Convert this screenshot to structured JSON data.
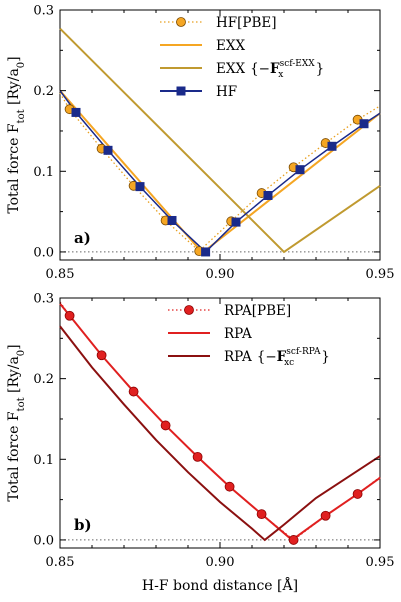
{
  "chart_data": [
    {
      "type": "line",
      "panel_label": "a)",
      "xlim": [
        0.85,
        0.95
      ],
      "ylim": [
        -0.01,
        0.3
      ],
      "x_ticks": [
        0.85,
        0.9,
        0.95
      ],
      "x_tick_labels": [
        "0.85",
        "0.90",
        "0.95"
      ],
      "y_ticks": [
        0.0,
        0.1,
        0.2,
        0.3
      ],
      "y_tick_labels": [
        "0.0",
        "0.1",
        "0.2",
        "0.3"
      ],
      "ylabel": "Total force F",
      "ylabel_sub": "tot",
      "ylabel_unit_pre": "[Ry/a",
      "ylabel_unit_sub": "0",
      "ylabel_unit_post": "]",
      "zero_line": true,
      "legend_position": "top-right",
      "series": [
        {
          "name": "HF[PBE]",
          "style": "dotted-circles",
          "color": "#e8a020",
          "marker_color": "#f5a623",
          "x": [
            0.85,
            0.853,
            0.863,
            0.873,
            0.883,
            0.8935,
            0.9035,
            0.913,
            0.923,
            0.933,
            0.943,
            0.95
          ],
          "y": [
            0.197,
            0.177,
            0.128,
            0.082,
            0.039,
            0.001,
            0.038,
            0.073,
            0.105,
            0.135,
            0.164,
            0.181
          ]
        },
        {
          "name": "EXX",
          "style": "line",
          "color": "#f5a623",
          "x": [
            0.85,
            0.8945,
            0.95
          ],
          "y": [
            0.2,
            -0.001,
            0.172
          ]
        },
        {
          "name": "EXX",
          "name_math": "{−F",
          "name_sub": "x",
          "name_sup": "scf-EXX",
          "name_post": "}",
          "style": "line",
          "color": "#c09a30",
          "x": [
            0.85,
            0.92,
            0.95
          ],
          "y": [
            0.277,
            0.0,
            0.082
          ]
        },
        {
          "name": "HF",
          "style": "line-squares",
          "color": "#1a2a8a",
          "marker_color": "#1a2a8a",
          "x": [
            0.85,
            0.855,
            0.865,
            0.875,
            0.885,
            0.8955,
            0.905,
            0.915,
            0.925,
            0.935,
            0.945,
            0.95
          ],
          "y": [
            0.2,
            0.173,
            0.126,
            0.081,
            0.039,
            0.0,
            0.037,
            0.07,
            0.102,
            0.131,
            0.159,
            0.172
          ]
        }
      ]
    },
    {
      "type": "line",
      "panel_label": "b)",
      "xlim": [
        0.85,
        0.95
      ],
      "ylim": [
        -0.01,
        0.3
      ],
      "x_ticks": [
        0.85,
        0.9,
        0.95
      ],
      "x_tick_labels": [
        "0.85",
        "0.90",
        "0.95"
      ],
      "y_ticks": [
        0.0,
        0.1,
        0.2,
        0.3
      ],
      "y_tick_labels": [
        "0.0",
        "0.1",
        "0.2",
        "0.3"
      ],
      "xlabel": "H-F bond distance [Å]",
      "ylabel": "Total force F",
      "ylabel_sub": "tot",
      "ylabel_unit_pre": "[Ry/a",
      "ylabel_unit_sub": "0",
      "ylabel_unit_post": "]",
      "zero_line": true,
      "legend_position": "top-right",
      "series": [
        {
          "name": "RPA[PBE]",
          "style": "dotted-circles",
          "color": "#e02020",
          "marker_color": "#e02020",
          "x": [
            0.85,
            0.853,
            0.863,
            0.873,
            0.883,
            0.893,
            0.903,
            0.913,
            0.923,
            0.933,
            0.943,
            0.95
          ],
          "y": [
            0.295,
            0.278,
            0.229,
            0.184,
            0.142,
            0.103,
            0.066,
            0.032,
            0.0,
            0.03,
            0.057,
            0.078
          ]
        },
        {
          "name": "RPA",
          "style": "line",
          "color": "#e02020",
          "x": [
            0.85,
            0.863,
            0.873,
            0.883,
            0.893,
            0.903,
            0.913,
            0.9225,
            0.933,
            0.943,
            0.95
          ],
          "y": [
            0.293,
            0.229,
            0.184,
            0.142,
            0.103,
            0.066,
            0.032,
            0.0,
            0.03,
            0.057,
            0.077
          ]
        },
        {
          "name": "RPA",
          "name_math": "{−F",
          "name_sub": "xc",
          "name_sup": "scf-RPA",
          "name_post": "}",
          "style": "line",
          "color": "#8b1010",
          "x": [
            0.85,
            0.86,
            0.87,
            0.88,
            0.89,
            0.9,
            0.91,
            0.914,
            0.92,
            0.93,
            0.94,
            0.95
          ],
          "y": [
            0.265,
            0.214,
            0.168,
            0.124,
            0.084,
            0.047,
            0.014,
            0.0,
            0.019,
            0.052,
            0.078,
            0.104
          ]
        }
      ]
    }
  ]
}
